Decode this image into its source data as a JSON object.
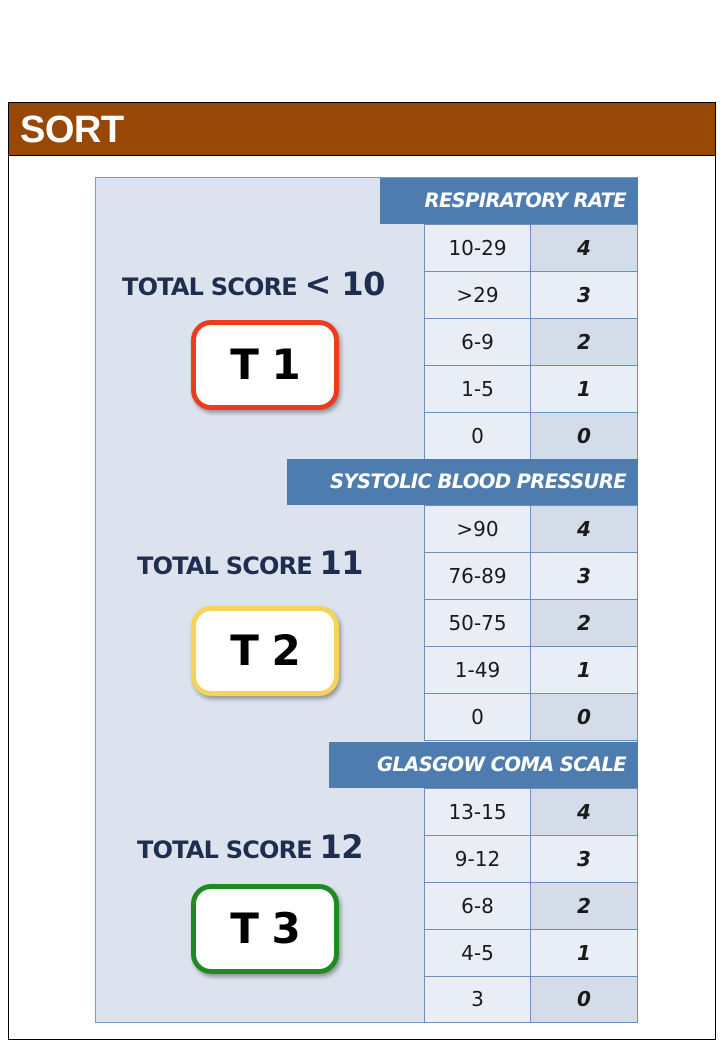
{
  "title": "SORT",
  "colors": {
    "title_bar": "#974806",
    "card_background": "#dce3ee",
    "header_bar": "#4f7cae",
    "t1_border": "#ec3b1d",
    "t2_border": "#f6d45a",
    "t3_border": "#1f8a22"
  },
  "sections": [
    {
      "header": "RESPIRATORY RATE",
      "rows": [
        {
          "range": "10-29",
          "score": "4"
        },
        {
          "range": ">29",
          "score": "3"
        },
        {
          "range": "6-9",
          "score": "2"
        },
        {
          "range": "1-5",
          "score": "1"
        },
        {
          "range": "0",
          "score": "0"
        }
      ]
    },
    {
      "header": "SYSTOLIC BLOOD PRESSURE",
      "rows": [
        {
          "range": ">90",
          "score": "4"
        },
        {
          "range": "76-89",
          "score": "3"
        },
        {
          "range": "50-75",
          "score": "2"
        },
        {
          "range": "1-49",
          "score": "1"
        },
        {
          "range": "0",
          "score": "0"
        }
      ]
    },
    {
      "header": "GLASGOW COMA SCALE",
      "rows": [
        {
          "range": "13-15",
          "score": "4"
        },
        {
          "range": "9-12",
          "score": "3"
        },
        {
          "range": "6-8",
          "score": "2"
        },
        {
          "range": "4-5",
          "score": "1"
        },
        {
          "range": "3",
          "score": "0"
        }
      ]
    }
  ],
  "triage": [
    {
      "label": "TOTAL SCORE",
      "value": "< 10",
      "badge": "T 1"
    },
    {
      "label": "TOTAL SCORE",
      "value": "11",
      "badge": "T 2"
    },
    {
      "label": "TOTAL SCORE",
      "value": "12",
      "badge": "T 3"
    }
  ]
}
